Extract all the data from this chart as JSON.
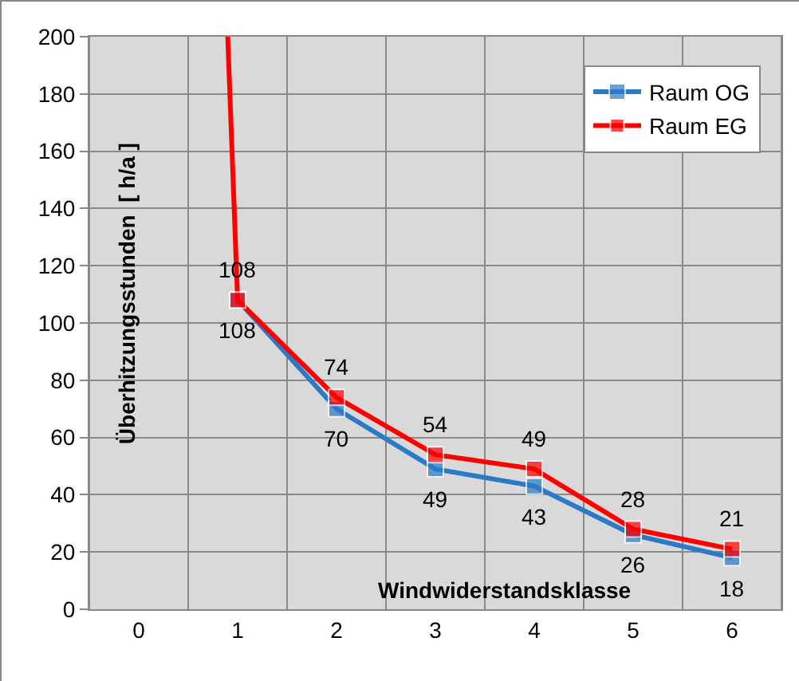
{
  "chart_data": {
    "type": "line",
    "xlabel": "Windwiderstandsklasse",
    "ylabel": "Überhitzungsstunden  [ h/a ]",
    "xlim": [
      -0.5,
      6.5
    ],
    "xticks": [
      {
        "value": -0.5,
        "label": null
      },
      0,
      {
        "value": 0.5,
        "label": null
      },
      1,
      {
        "value": 1.5,
        "label": null
      },
      2,
      {
        "value": 2.5,
        "label": null
      },
      3,
      {
        "value": 3.5,
        "label": null
      },
      4,
      {
        "value": 4.5,
        "label": null
      },
      5,
      {
        "value": 5.5,
        "label": null
      },
      6,
      {
        "value": 6.5,
        "label": null
      }
    ],
    "ylim": [
      0,
      200
    ],
    "yticks": [
      0,
      20,
      40,
      60,
      80,
      100,
      120,
      140,
      160,
      180,
      200
    ],
    "grid": true,
    "legend": "top right",
    "marker": "square",
    "line_style": "solid",
    "series": [
      {
        "name": "Raum OG",
        "color": "#2a7ac8",
        "x": [
          1,
          2,
          3,
          4,
          5,
          6
        ],
        "values": [
          108,
          70,
          49,
          43,
          26,
          18
        ],
        "value_labels": [
          "108",
          "70",
          "49",
          "43",
          "26",
          "18"
        ]
      },
      {
        "name": "Raum EG",
        "color": "#ff0000",
        "x": [
          0.9,
          1,
          2,
          3,
          4,
          5,
          6
        ],
        "values": [
          200,
          108,
          74,
          54,
          49,
          28,
          21
        ],
        "value_labels": [
          null,
          "108",
          "74",
          "54",
          "49",
          "28",
          "21"
        ]
      }
    ]
  }
}
